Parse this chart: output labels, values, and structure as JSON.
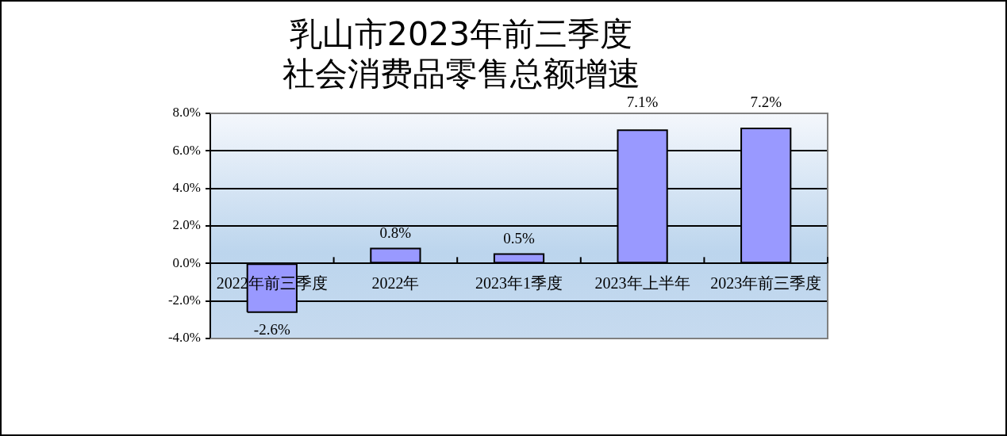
{
  "chart_data": {
    "type": "bar",
    "title": "乳山市2023年前三季度社会消费品零售总额增速",
    "categories": [
      "2022年前三季度",
      "2022年",
      "2023年1季度",
      "2023年上半年",
      "2023年前三季度"
    ],
    "values": [
      -2.6,
      0.8,
      0.5,
      7.1,
      7.2
    ],
    "color": "#9999ff",
    "value_labels": [
      "-2.6%",
      "0.8%",
      "0.5%",
      "7.1%",
      "7.2%"
    ],
    "ylim": [
      -4,
      8
    ],
    "yticks": [
      {
        "value": -4,
        "label": "-4.0%"
      },
      {
        "value": -2,
        "label": "-2.0%"
      },
      {
        "value": 0,
        "label": "0.0%"
      },
      {
        "value": 2,
        "label": "2.0%"
      },
      {
        "value": 4,
        "label": "4.0%"
      },
      {
        "value": 6,
        "label": "6.0%"
      },
      {
        "value": 8,
        "label": "8.0%"
      }
    ],
    "grid": "y"
  }
}
